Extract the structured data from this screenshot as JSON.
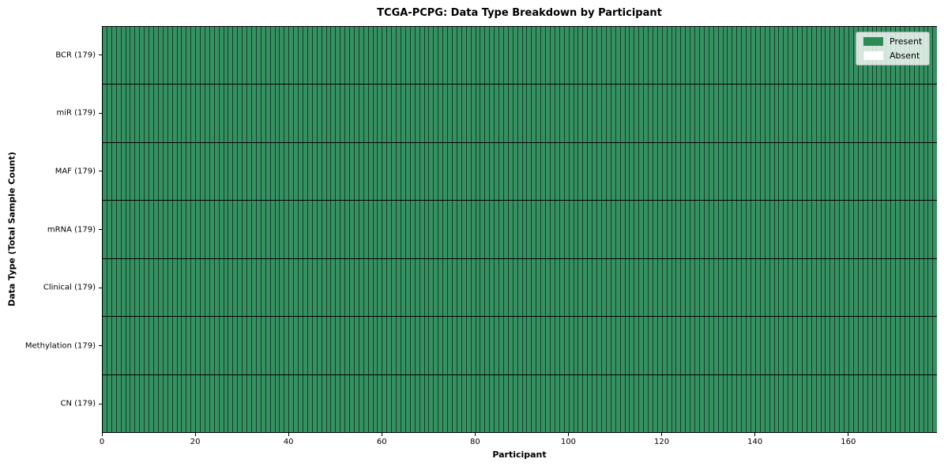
{
  "chart_data": {
    "type": "heatmap",
    "title": "TCGA-PCPG: Data Type Breakdown by Participant",
    "xlabel": "Participant",
    "ylabel": "Data Type (Total Sample Count)",
    "participants": 179,
    "xlim": [
      0,
      179
    ],
    "x_ticks": [
      0,
      20,
      40,
      60,
      80,
      100,
      120,
      140,
      160
    ],
    "grid": "cell-edges-on",
    "legend_position": "upper-right",
    "rows": [
      {
        "label": "BCR (179)",
        "data_type": "BCR",
        "total_samples": 179,
        "present_count": 179,
        "absent_count": 0
      },
      {
        "label": "miR (179)",
        "data_type": "miR",
        "total_samples": 179,
        "present_count": 179,
        "absent_count": 0
      },
      {
        "label": "MAF (179)",
        "data_type": "MAF",
        "total_samples": 179,
        "present_count": 179,
        "absent_count": 0
      },
      {
        "label": "mRNA (179)",
        "data_type": "mRNA",
        "total_samples": 179,
        "present_count": 179,
        "absent_count": 0
      },
      {
        "label": "Clinical (179)",
        "data_type": "Clinical",
        "total_samples": 179,
        "present_count": 179,
        "absent_count": 0
      },
      {
        "label": "Methylation (179)",
        "data_type": "Methylation",
        "total_samples": 179,
        "present_count": 179,
        "absent_count": 0
      },
      {
        "label": "CN (179)",
        "data_type": "CN",
        "total_samples": 179,
        "present_count": 179,
        "absent_count": 0
      }
    ],
    "legend": [
      {
        "label": "Present",
        "color": "#2e8b57"
      },
      {
        "label": "Absent",
        "color": "#ffffff"
      }
    ],
    "colors": {
      "present_fill": "#359161",
      "absent_fill": "#ffffff",
      "cell_edge": "rgba(0,0,0,0.58)",
      "row_separator": "#000000",
      "plot_border": "#000000"
    }
  }
}
